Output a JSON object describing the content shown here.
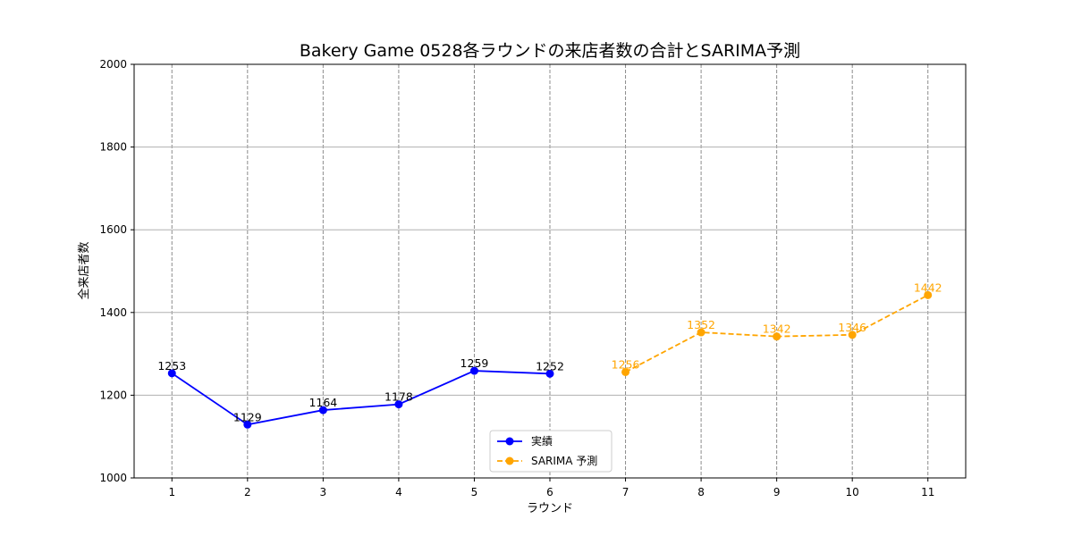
{
  "chart_data": {
    "type": "line",
    "title": "Bakery Game  0528各ラウンドの来店者数の合計とSARIMA予測",
    "xlabel": "ラウンド",
    "ylabel": "全来店者数",
    "xlim": [
      0.5,
      11.5
    ],
    "ylim": [
      1000,
      2000
    ],
    "xticks": [
      1,
      2,
      3,
      4,
      5,
      6,
      7,
      8,
      9,
      10,
      11
    ],
    "yticks": [
      1000,
      1200,
      1400,
      1600,
      1800,
      2000
    ],
    "grid": true,
    "legend_position": "bottom-center",
    "series": [
      {
        "name": "実績",
        "color": "#0000ff",
        "line_style": "solid",
        "marker": "circle",
        "x": [
          1,
          2,
          3,
          4,
          5,
          6
        ],
        "values": [
          1253,
          1129,
          1164,
          1178,
          1259,
          1252
        ],
        "labels": [
          "1253",
          "1129",
          "1164",
          "1178",
          "1259",
          "1252"
        ]
      },
      {
        "name": "SARIMA 予測",
        "color": "#ffa500",
        "line_style": "dashed",
        "marker": "circle",
        "x": [
          7,
          8,
          9,
          10,
          11
        ],
        "values": [
          1256,
          1352,
          1342,
          1346,
          1442
        ],
        "labels": [
          "1256",
          "1352",
          "1342",
          "1346",
          "1442"
        ]
      }
    ]
  }
}
